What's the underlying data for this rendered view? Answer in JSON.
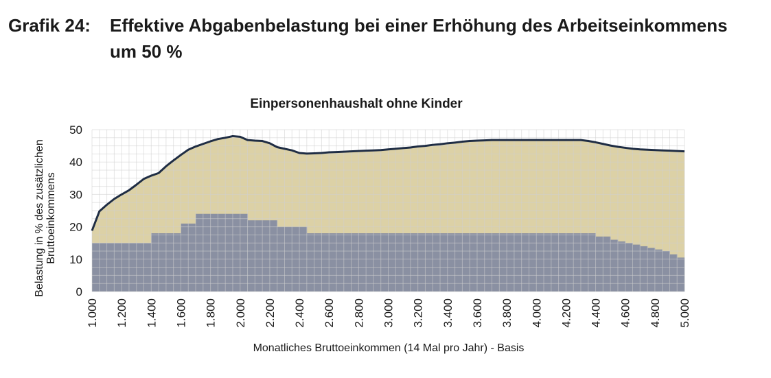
{
  "figure": {
    "label": "Grafik 24:",
    "title": "Effektive Abgabenbelastung bei einer Erhöhung des Arbeitseinkommens um 50 %"
  },
  "chart_data": {
    "type": "area",
    "title": "Einpersonenhaushalt ohne Kinder",
    "xlabel": "Monatliches Bruttoeinkommen (14 Mal pro Jahr) - Basis",
    "ylabel_lines": [
      "Belastung in % des zusätzlichen",
      "Bruttoeinkommens"
    ],
    "xlim": [
      1000,
      5000
    ],
    "ylim": [
      0,
      50
    ],
    "grid": true,
    "x_ticks": [
      "1.000",
      "1.200",
      "1.400",
      "1.600",
      "1.800",
      "2.000",
      "2.200",
      "2.400",
      "2.600",
      "2.800",
      "3.000",
      "3.200",
      "3.400",
      "3.600",
      "3.800",
      "4.000",
      "4.200",
      "4.400",
      "4.600",
      "4.800",
      "5.000"
    ],
    "y_ticks": [
      "0",
      "10",
      "20",
      "30",
      "40",
      "50"
    ],
    "colors": {
      "total_line": "#1f2d44",
      "total_area": "#dcd1a6",
      "lower_area": "#8a90a2",
      "grid": "#cfcfcf"
    },
    "series": [
      {
        "kind": "line+area",
        "x": [
          1000,
          1050,
          1100,
          1150,
          1200,
          1250,
          1300,
          1350,
          1400,
          1450,
          1500,
          1550,
          1600,
          1650,
          1700,
          1750,
          1800,
          1850,
          1900,
          1950,
          2000,
          2050,
          2100,
          2150,
          2200,
          2250,
          2300,
          2350,
          2400,
          2450,
          2500,
          2550,
          2600,
          2650,
          2700,
          2750,
          2800,
          2850,
          2900,
          2950,
          3000,
          3050,
          3100,
          3150,
          3200,
          3250,
          3300,
          3350,
          3400,
          3450,
          3500,
          3550,
          3600,
          3650,
          3700,
          3750,
          3800,
          3850,
          3900,
          3950,
          4000,
          4050,
          4100,
          4150,
          4200,
          4250,
          4300,
          4350,
          4400,
          4450,
          4500,
          4550,
          4600,
          4650,
          4700,
          4750,
          4800,
          4850,
          4900,
          4950,
          5000
        ],
        "y": [
          18.8,
          24.8,
          26.8,
          28.6,
          30,
          31.3,
          33,
          34.8,
          35.8,
          36.6,
          38.7,
          40.5,
          42.2,
          43.8,
          44.8,
          45.6,
          46.4,
          47.1,
          47.5,
          48,
          47.8,
          46.8,
          46.6,
          46.5,
          45.8,
          44.6,
          44.1,
          43.6,
          42.8,
          42.6,
          42.7,
          42.8,
          43,
          43.1,
          43.2,
          43.3,
          43.4,
          43.5,
          43.6,
          43.7,
          43.9,
          44.1,
          44.3,
          44.5,
          44.8,
          45,
          45.3,
          45.5,
          45.8,
          46,
          46.3,
          46.5,
          46.6,
          46.7,
          46.8,
          46.8,
          46.8,
          46.8,
          46.8,
          46.8,
          46.8,
          46.8,
          46.8,
          46.8,
          46.8,
          46.8,
          46.8,
          46.5,
          46.1,
          45.6,
          45.1,
          44.7,
          44.4,
          44.1,
          43.9,
          43.8,
          43.7,
          43.6,
          43.5,
          43.4,
          43.3
        ]
      },
      {
        "kind": "step-area",
        "x": [
          1000,
          1050,
          1100,
          1150,
          1200,
          1250,
          1300,
          1350,
          1400,
          1450,
          1500,
          1550,
          1600,
          1650,
          1700,
          1750,
          1800,
          1850,
          1900,
          1950,
          2000,
          2050,
          2100,
          2150,
          2200,
          2250,
          2300,
          2350,
          2400,
          2450,
          2500,
          2550,
          2600,
          2650,
          2700,
          2750,
          2800,
          2850,
          2900,
          2950,
          3000,
          3050,
          3100,
          3150,
          3200,
          3250,
          3300,
          3350,
          3400,
          3450,
          3500,
          3550,
          3600,
          3650,
          3700,
          3750,
          3800,
          3850,
          3900,
          3950,
          4000,
          4050,
          4100,
          4150,
          4200,
          4250,
          4300,
          4350,
          4400,
          4450,
          4500,
          4550,
          4600,
          4650,
          4700,
          4750,
          4800,
          4850,
          4900,
          4950
        ],
        "y": [
          15,
          15,
          15,
          15,
          15,
          15,
          15,
          15,
          18,
          18,
          18,
          18,
          21,
          21,
          24,
          24,
          24,
          24,
          24,
          24,
          24,
          22,
          22,
          22,
          22,
          20,
          20,
          20,
          20,
          18,
          18,
          18,
          18,
          18,
          18,
          18,
          18,
          18,
          18,
          18,
          18,
          18,
          18,
          18,
          18,
          18,
          18,
          18,
          18,
          18,
          18,
          18,
          18,
          18,
          18,
          18,
          18,
          18,
          18,
          18,
          18,
          18,
          18,
          18,
          18,
          18,
          18,
          18,
          17,
          17,
          16,
          15.5,
          15,
          14.5,
          14,
          13.5,
          13,
          12.5,
          11.5,
          10.5
        ]
      }
    ]
  }
}
